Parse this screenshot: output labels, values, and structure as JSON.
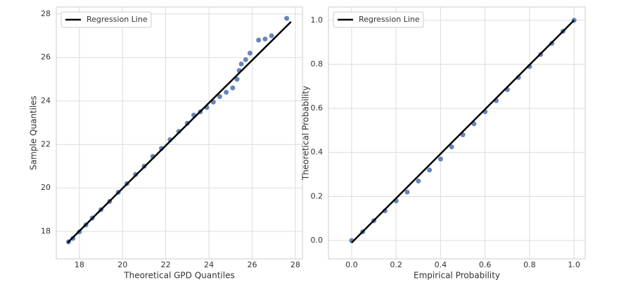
{
  "chart_data": [
    {
      "type": "scatter",
      "xlabel": "Theoretical GPD Quantiles",
      "ylabel": "Sample Quantiles",
      "xlim": [
        16.93,
        28.33
      ],
      "ylim": [
        16.74,
        28.32
      ],
      "xticks": [
        18,
        20,
        22,
        24,
        26,
        28
      ],
      "yticks": [
        18,
        20,
        22,
        24,
        26,
        28
      ],
      "grid": true,
      "legend": "upper left",
      "series": [
        {
          "color": "#4c72b0",
          "x": [
            17.5,
            17.7,
            18.0,
            18.3,
            18.6,
            19.0,
            19.4,
            19.8,
            20.2,
            20.6,
            21.0,
            21.4,
            21.8,
            22.2,
            22.6,
            23.0,
            23.3,
            23.6,
            23.9,
            24.2,
            24.5,
            24.8,
            25.1,
            25.3,
            25.4,
            25.5,
            25.7,
            25.9,
            26.3,
            26.6,
            26.9,
            27.6
          ],
          "values": [
            17.52,
            17.68,
            17.98,
            18.3,
            18.62,
            19.0,
            19.38,
            19.8,
            20.2,
            20.62,
            21.0,
            21.45,
            21.82,
            22.22,
            22.6,
            22.98,
            23.35,
            23.5,
            23.7,
            23.95,
            24.2,
            24.4,
            24.6,
            25.0,
            25.4,
            25.7,
            25.9,
            26.2,
            26.8,
            26.85,
            27.0,
            27.8
          ]
        },
        {
          "type": "line",
          "name": "Regression Line",
          "color": "#000000",
          "x": [
            17.45,
            27.8
          ],
          "values": [
            17.48,
            27.64
          ]
        }
      ]
    },
    {
      "type": "scatter",
      "xlabel": "Empirical Probability",
      "ylabel": "Theoretical Probability",
      "xlim": [
        -0.104,
        1.05
      ],
      "ylim": [
        -0.083,
        1.06
      ],
      "xticks": [
        {
          "value": 0,
          "label": "0.0"
        },
        {
          "value": 0.2,
          "label": "0.2"
        },
        {
          "value": 0.4,
          "label": "0.4"
        },
        {
          "value": 0.6,
          "label": "0.6"
        },
        {
          "value": 0.8,
          "label": "0.8"
        },
        {
          "value": 1,
          "label": "1.0"
        }
      ],
      "yticks": [
        {
          "value": 0,
          "label": "0.0"
        },
        {
          "value": 0.2,
          "label": "0.2"
        },
        {
          "value": 0.4,
          "label": "0.4"
        },
        {
          "value": 0.6,
          "label": "0.6"
        },
        {
          "value": 0.8,
          "label": "0.8"
        },
        {
          "value": 1,
          "label": "1.0"
        }
      ],
      "grid": true,
      "legend": "upper left",
      "series": [
        {
          "color": "#4c72b0",
          "x": [
            0,
            0.05,
            0.1,
            0.15,
            0.2,
            0.25,
            0.3,
            0.35,
            0.4,
            0.45,
            0.5,
            0.55,
            0.6,
            0.65,
            0.7,
            0.75,
            0.8,
            0.85,
            0.9,
            0.95,
            1.0
          ],
          "values": [
            0.0,
            0.04,
            0.09,
            0.135,
            0.18,
            0.22,
            0.27,
            0.32,
            0.37,
            0.425,
            0.48,
            0.53,
            0.585,
            0.635,
            0.685,
            0.74,
            0.79,
            0.845,
            0.895,
            0.95,
            1.0
          ]
        },
        {
          "type": "line",
          "name": "Regression Line",
          "color": "#000000",
          "x": [
            0,
            1.0
          ],
          "values": [
            -0.01,
            1.0
          ]
        }
      ]
    }
  ]
}
